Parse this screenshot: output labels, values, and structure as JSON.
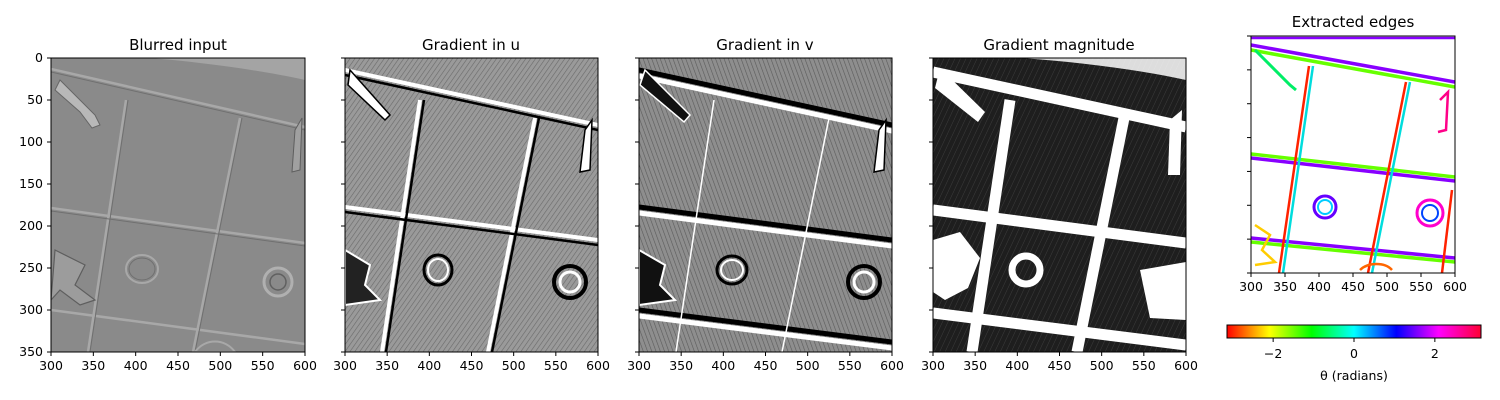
{
  "figure": {
    "panels": [
      {
        "title": "Blurred input",
        "image": "blurred",
        "show_yticklabels": true
      },
      {
        "title": "Gradient in u",
        "image": "grad_u",
        "show_yticklabels": false
      },
      {
        "title": "Gradient in v",
        "image": "grad_v",
        "show_yticklabels": false
      },
      {
        "title": "Gradient magnitude",
        "image": "magnitude",
        "show_yticklabels": false
      },
      {
        "title": "Extracted edges",
        "image": "edges",
        "show_yticklabels": false
      }
    ],
    "colorbar": {
      "label": "θ (radians)",
      "colormap": "hsv",
      "range": [
        -3.14159,
        3.14159
      ],
      "ticks": [
        -2,
        0,
        2
      ],
      "tick_labels": [
        "−2",
        "0",
        "2"
      ]
    }
  },
  "chart_data": [
    {
      "type": "heatmap",
      "title": "Blurred input",
      "colormap": "gray",
      "xlim": [
        300,
        600
      ],
      "ylim": [
        350,
        0
      ],
      "xticks": [
        300,
        350,
        400,
        450,
        500,
        550,
        600
      ],
      "yticks": [
        0,
        50,
        100,
        150,
        200,
        250,
        300,
        350
      ]
    },
    {
      "type": "heatmap",
      "title": "Gradient in u",
      "colormap": "gray",
      "xlim": [
        300,
        600
      ],
      "ylim": [
        350,
        0
      ],
      "xticks": [
        300,
        350,
        400,
        450,
        500,
        550,
        600
      ]
    },
    {
      "type": "heatmap",
      "title": "Gradient in v",
      "colormap": "gray",
      "xlim": [
        300,
        600
      ],
      "ylim": [
        350,
        0
      ],
      "xticks": [
        300,
        350,
        400,
        450,
        500,
        550,
        600
      ]
    },
    {
      "type": "heatmap",
      "title": "Gradient magnitude",
      "colormap": "gray",
      "xlim": [
        300,
        600
      ],
      "ylim": [
        350,
        0
      ],
      "xticks": [
        300,
        350,
        400,
        450,
        500,
        550,
        600
      ]
    },
    {
      "type": "heatmap",
      "title": "Extracted edges",
      "colormap": "hsv",
      "xlim": [
        300,
        600
      ],
      "ylim": [
        350,
        0
      ],
      "xticks": [
        300,
        350,
        400,
        450,
        500,
        550,
        600
      ]
    }
  ]
}
